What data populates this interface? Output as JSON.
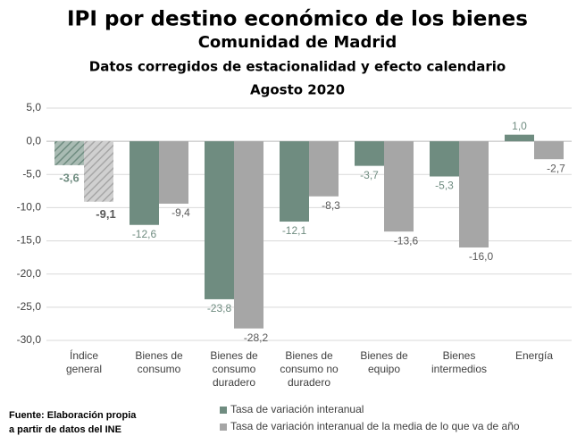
{
  "chart_data": {
    "type": "bar",
    "title": "IPI por destino económico de los bienes",
    "subtitle": [
      "Comunidad de Madrid",
      "Datos corregidos de estacionalidad y efecto calendario",
      "Agosto 2020"
    ],
    "categories": [
      [
        "Índice",
        "general"
      ],
      [
        "Bienes de",
        "consumo"
      ],
      [
        "Bienes de",
        "consumo",
        "duradero"
      ],
      [
        "Bienes de",
        "consumo no",
        "duradero"
      ],
      [
        "Bienes de",
        "equipo"
      ],
      [
        "Bienes",
        "intermedios"
      ],
      [
        "Energía"
      ]
    ],
    "series": [
      {
        "name": "Tasa de variación interanual",
        "color": "#6f8c80",
        "label_color": "#6f8c80",
        "values": [
          -3.6,
          -12.6,
          -23.8,
          -12.1,
          -3.7,
          -5.3,
          1.0
        ],
        "value_labels": [
          "-3,6",
          "-12,6",
          "-23,8",
          "-12,1",
          "-3,7",
          "-5,3",
          "1,0"
        ]
      },
      {
        "name": "Tasa de variación interanual de la media de lo que va de año",
        "color": "#a6a6a6",
        "label_color": "#595959",
        "values": [
          -9.1,
          -9.4,
          -28.2,
          -8.3,
          -13.6,
          -16.0,
          -2.7
        ],
        "value_labels": [
          "-9,1",
          "-9,4",
          "-28,2",
          "-8,3",
          "-13,6",
          "-16,0",
          "-2,7"
        ]
      }
    ],
    "hatched_category": 0,
    "ylim": [
      -30,
      5
    ],
    "yticks": [
      {
        "value": 5,
        "label": "5,0"
      },
      {
        "value": 0,
        "label": "0,0"
      },
      {
        "value": -5,
        "label": "-5,0"
      },
      {
        "value": -10,
        "label": "-10,0"
      },
      {
        "value": -15,
        "label": "-15,0"
      },
      {
        "value": -20,
        "label": "-20,0"
      },
      {
        "value": -25,
        "label": "-25,0"
      },
      {
        "value": -30,
        "label": "-30,0"
      }
    ],
    "grid": true,
    "source": [
      "Fuente: Elaboración propia",
      "a partir de datos del INE"
    ]
  }
}
